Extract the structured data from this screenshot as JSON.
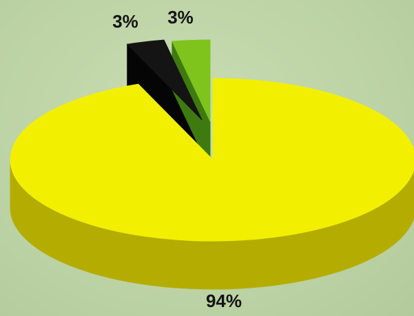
{
  "chart_data": {
    "type": "pie",
    "title": "",
    "labels": [
      "94%",
      "3%",
      "3%"
    ],
    "values": [
      94,
      3,
      3
    ],
    "colors": {
      "top": [
        "#f2f000",
        "#141414",
        "#7fc41c"
      ],
      "side": [
        "#b4ad00",
        "#050505",
        "#3f7a10"
      ]
    },
    "style": "3d-exploded"
  }
}
